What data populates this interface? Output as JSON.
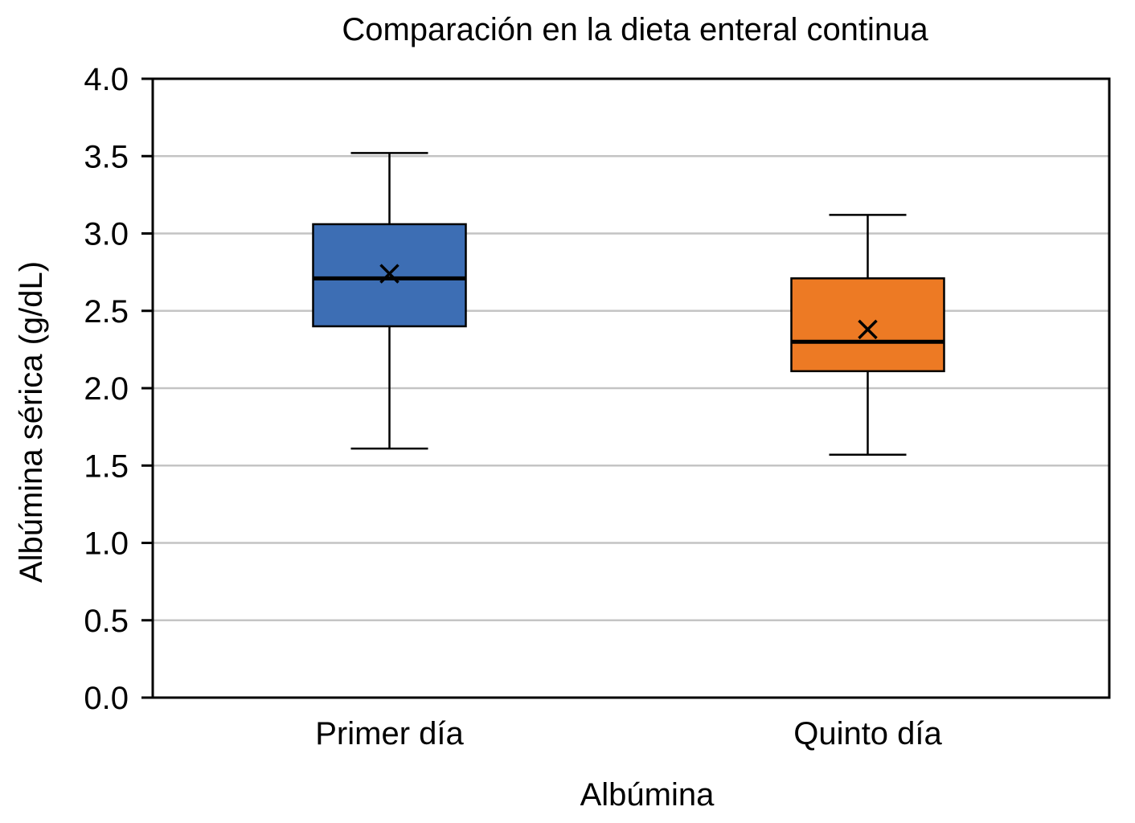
{
  "chart_data": {
    "type": "box",
    "title": "Comparación en la dieta enteral continua",
    "xlabel": "Albúmina",
    "ylabel": "Albúmina sérica (g/dL)",
    "ylim": [
      0,
      4.0
    ],
    "yticks": [
      "0.0",
      "0.5",
      "1.0",
      "1.5",
      "2.0",
      "2.5",
      "3.0",
      "3.5",
      "4.0"
    ],
    "grid": true,
    "categories": [
      "Primer día",
      "Quinto día"
    ],
    "series": [
      {
        "name": "Primer día",
        "color": "#3d6eb4",
        "min": 1.61,
        "q1": 2.4,
        "median": 2.71,
        "q3": 3.06,
        "max": 3.52,
        "mean": 2.74
      },
      {
        "name": "Quinto día",
        "color": "#ed7a24",
        "min": 1.57,
        "q1": 2.11,
        "median": 2.3,
        "q3": 2.71,
        "max": 3.12,
        "mean": 2.38
      }
    ]
  }
}
